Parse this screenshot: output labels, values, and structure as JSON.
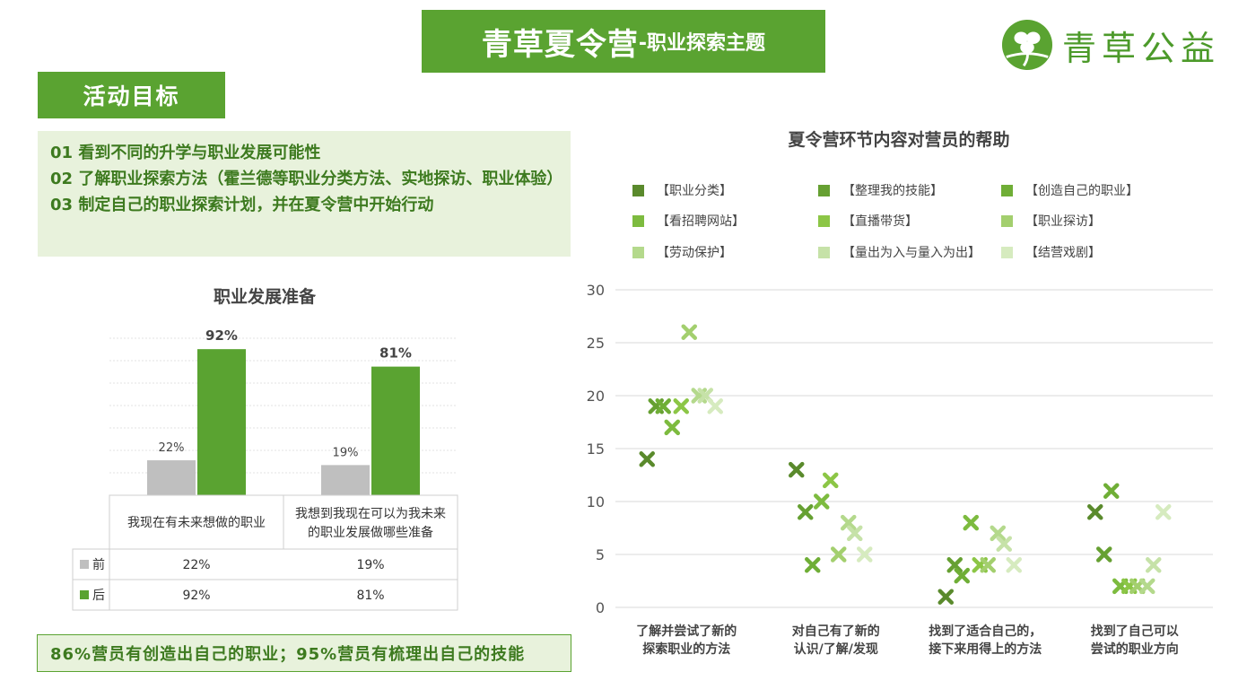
{
  "header": {
    "title_main": "青草夏令营",
    "title_sub": "-职业探索主题",
    "logo_text": "青草公益"
  },
  "goals": {
    "tag": "活动目标",
    "items": [
      "01 看到不同的升学与职业发展可能性",
      "02 了解职业探索方法（霍兰德等职业分类方法、实地探访、职业体验）",
      "03 制定自己的职业探索计划，并在夏令营中开始行动"
    ]
  },
  "bottom_note": "86%营员有创造出自己的职业；95%营员有梳理出自己的技能",
  "colors": {
    "accent": "#5aa331",
    "before": "#bfbfbf",
    "after": "#5aa331",
    "light_bg": "#e8f2dc"
  },
  "chart_data": [
    {
      "type": "bar",
      "title": "职业发展准备",
      "categories": [
        "我现在有未来想做的职业",
        "我想到我现在可以为我未来的职业发展做哪些准备"
      ],
      "category_lines": [
        [
          "我现在有未来想做的职业"
        ],
        [
          "我想到我现在可以为我未来",
          "的职业发展做哪些准备"
        ]
      ],
      "series": [
        {
          "name": "前",
          "values": [
            22,
            19
          ],
          "labels": [
            "22%",
            "19%"
          ],
          "color": "#bfbfbf"
        },
        {
          "name": "后",
          "values": [
            92,
            81
          ],
          "labels": [
            "92%",
            "81%"
          ],
          "color": "#5aa331"
        }
      ],
      "ylim": [
        0,
        100
      ]
    },
    {
      "type": "scatter",
      "title": "夏令营环节内容对营员的帮助",
      "categories": [
        "了解并尝试了新的探索职业的方法",
        "对自己有了新的认识/了解/发现",
        "找到了适合自己的，接下来用得上的方法",
        "找到了自己可以尝试的职业方向"
      ],
      "category_lines": [
        [
          "了解并尝试了新的",
          "探索职业的方法"
        ],
        [
          "对自己有了新的",
          "认识/了解/发现"
        ],
        [
          "找到了适合自己的，",
          "接下来用得上的方法"
        ],
        [
          "找到了自己可以",
          "尝试的职业方向"
        ]
      ],
      "yticks": [
        "0",
        "5",
        "10",
        "15",
        "20",
        "25",
        "30"
      ],
      "ylim": [
        0,
        30
      ],
      "legend_position": "top",
      "series": [
        {
          "name": "【职业分类】",
          "color": "#5a8a2c",
          "values": [
            14,
            13,
            1,
            9
          ]
        },
        {
          "name": "【整理我的技能】",
          "color": "#66a032",
          "values": [
            19,
            9,
            4,
            5
          ]
        },
        {
          "name": "【创造自己的职业】",
          "color": "#6fae36",
          "values": [
            19,
            4,
            3,
            11
          ]
        },
        {
          "name": "【看招聘网站】",
          "color": "#7dbb3f",
          "values": [
            17,
            10,
            8,
            2
          ]
        },
        {
          "name": "【直播带货】",
          "color": "#8cc646",
          "values": [
            19,
            12,
            4,
            2
          ]
        },
        {
          "name": "【职业探访】",
          "color": "#a3cf6e",
          "values": [
            26,
            5,
            4,
            2
          ]
        },
        {
          "name": "【劳动保护】",
          "color": "#b4d98c",
          "values": [
            20,
            8,
            7,
            2
          ]
        },
        {
          "name": "【量出为入与量入为出】",
          "color": "#c6e2a8",
          "values": [
            20,
            7,
            6,
            4
          ]
        },
        {
          "name": "【结营戏剧】",
          "color": "#d6ebbf",
          "values": [
            19,
            5,
            4,
            9
          ]
        }
      ]
    }
  ]
}
